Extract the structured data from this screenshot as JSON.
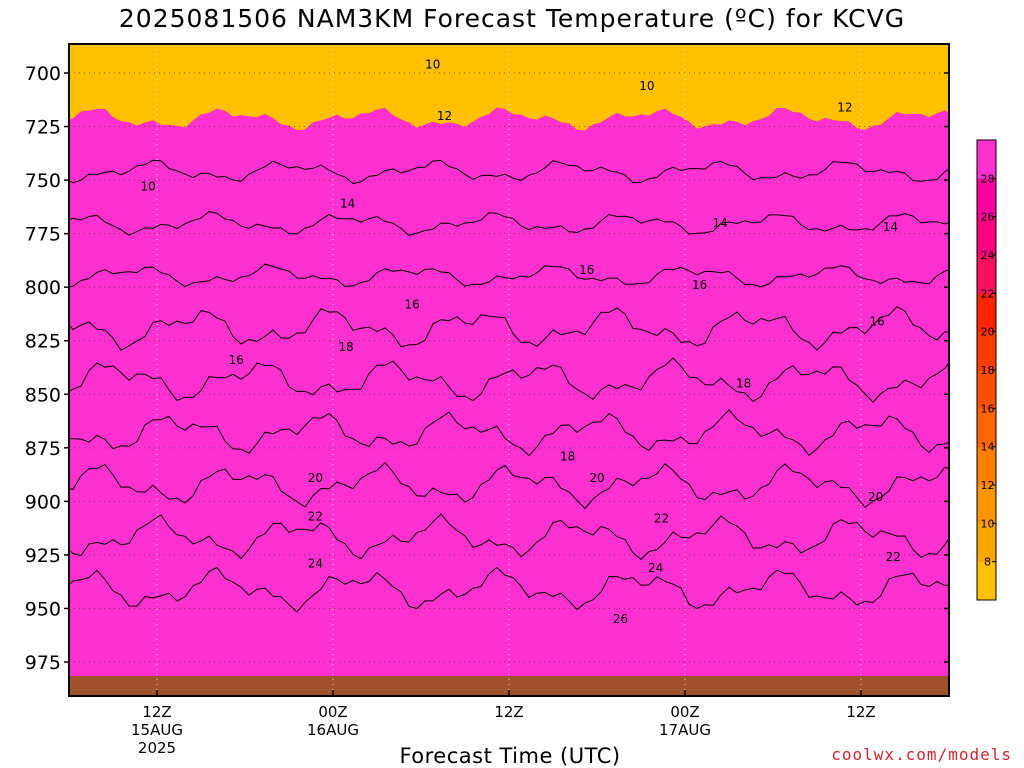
{
  "chart_data": {
    "type": "heatmap",
    "title": "2025081506 NAM3KM Forecast Temperature (ºC) for KCVG",
    "xlabel": "Forecast Time (UTC)",
    "ylabel": "",
    "credit": "coolwx.com/models",
    "y_scale": "pressure (hPa), decreasing upward",
    "ylim": [
      990,
      687
    ],
    "y_ticks": [
      700,
      725,
      750,
      775,
      800,
      825,
      850,
      875,
      900,
      925,
      950,
      975
    ],
    "xlim_hours": [
      6,
      66
    ],
    "x_ticks": [
      {
        "hour": 12,
        "lines": [
          "12Z",
          "15AUG",
          "2025"
        ]
      },
      {
        "hour": 24,
        "lines": [
          "00Z",
          "16AUG"
        ]
      },
      {
        "hour": 36,
        "lines": [
          "12Z"
        ]
      },
      {
        "hour": 48,
        "lines": [
          "00Z",
          "17AUG"
        ]
      },
      {
        "hour": 60,
        "lines": [
          "12Z"
        ]
      }
    ],
    "grid": "dotted",
    "colorbar": {
      "placement": "right",
      "levels": [
        6,
        8,
        10,
        12,
        14,
        16,
        18,
        20,
        22,
        24,
        26,
        28,
        30
      ],
      "tick_labels": [
        8,
        10,
        12,
        14,
        16,
        18,
        20,
        22,
        24,
        26,
        28
      ],
      "colors": [
        "#ffc000",
        "#ffa500",
        "#ff9500",
        "#ff7f00",
        "#ff6600",
        "#ff5000",
        "#ff3c00",
        "#ff2500",
        "#ff1060",
        "#ff0080",
        "#ff00a0",
        "#ff30d0"
      ]
    },
    "contour_levels": [
      10,
      12,
      14,
      16,
      18,
      20,
      22,
      24,
      26
    ],
    "contour_labels": [
      {
        "value": "10",
        "hour": 11.4,
        "hPa": 753
      },
      {
        "value": "10",
        "hour": 30.8,
        "hPa": 696
      },
      {
        "value": "10",
        "hour": 45.4,
        "hPa": 706
      },
      {
        "value": "12",
        "hour": 31.6,
        "hPa": 720
      },
      {
        "value": "12",
        "hour": 58.9,
        "hPa": 716
      },
      {
        "value": "14",
        "hour": 25.0,
        "hPa": 761
      },
      {
        "value": "14",
        "hour": 50.4,
        "hPa": 770
      },
      {
        "value": "14",
        "hour": 62.0,
        "hPa": 772
      },
      {
        "value": "16",
        "hour": 17.4,
        "hPa": 834
      },
      {
        "value": "16",
        "hour": 29.4,
        "hPa": 808
      },
      {
        "value": "16",
        "hour": 41.3,
        "hPa": 792
      },
      {
        "value": "16",
        "hour": 49.0,
        "hPa": 799
      },
      {
        "value": "16",
        "hour": 61.1,
        "hPa": 816
      },
      {
        "value": "18",
        "hour": 24.9,
        "hPa": 828
      },
      {
        "value": "18",
        "hour": 40.0,
        "hPa": 879
      },
      {
        "value": "18",
        "hour": 52.0,
        "hPa": 845
      },
      {
        "value": "20",
        "hour": 22.8,
        "hPa": 889
      },
      {
        "value": "20",
        "hour": 42.0,
        "hPa": 889
      },
      {
        "value": "20",
        "hour": 61.0,
        "hPa": 898
      },
      {
        "value": "22",
        "hour": 22.8,
        "hPa": 907
      },
      {
        "value": "22",
        "hour": 46.4,
        "hPa": 908
      },
      {
        "value": "22",
        "hour": 62.2,
        "hPa": 926
      },
      {
        "value": "24",
        "hour": 22.8,
        "hPa": 929
      },
      {
        "value": "24",
        "hour": 46.0,
        "hPa": 931
      },
      {
        "value": "26",
        "hour": 43.6,
        "hPa": 955
      }
    ]
  }
}
